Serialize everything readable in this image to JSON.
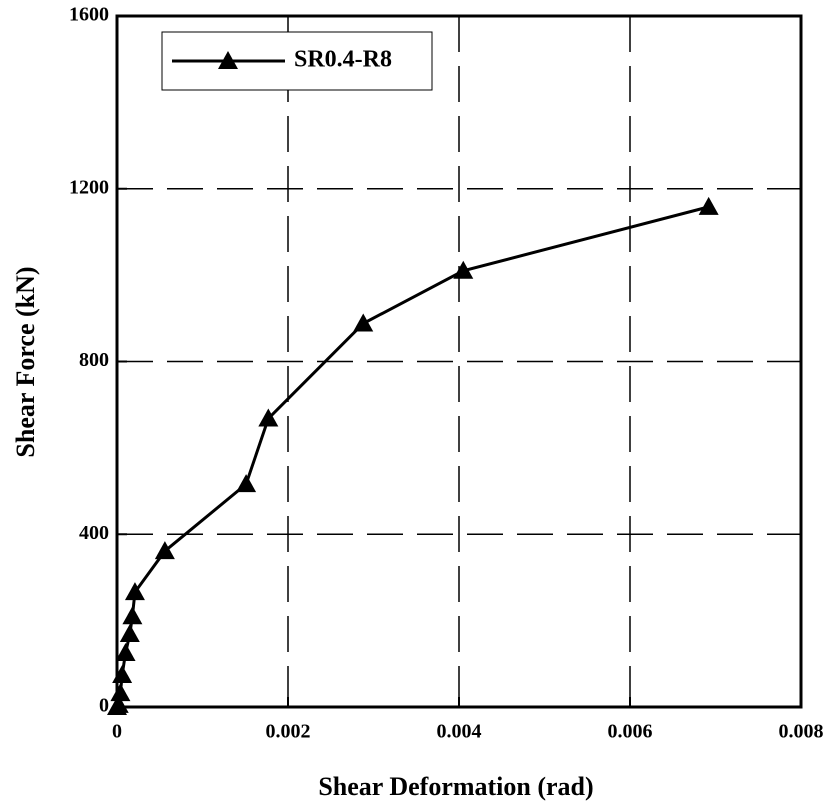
{
  "chart_data": {
    "type": "line",
    "xlabel": "Shear Deformation (rad)",
    "ylabel": "Shear Force (kN)",
    "xlim": [
      0,
      0.008
    ],
    "ylim": [
      0,
      1600
    ],
    "xticks": [
      0,
      0.002,
      0.004,
      0.006,
      0.008
    ],
    "yticks": [
      0,
      400,
      800,
      1200,
      1600
    ],
    "grid": true,
    "legend": "upper left",
    "series": [
      {
        "name": "SR0.4-R8",
        "color": "#000000",
        "x": [
          0,
          2e-05,
          4e-05,
          6e-05,
          0.0001,
          0.00015,
          0.00018,
          0.00021,
          0.00056,
          0.00151,
          0.00177,
          0.00288,
          0.00405,
          0.00692
        ],
        "values": [
          0,
          5,
          32,
          74,
          125,
          169,
          210,
          266,
          361,
          516,
          668,
          888,
          1010,
          1158
        ]
      }
    ]
  }
}
